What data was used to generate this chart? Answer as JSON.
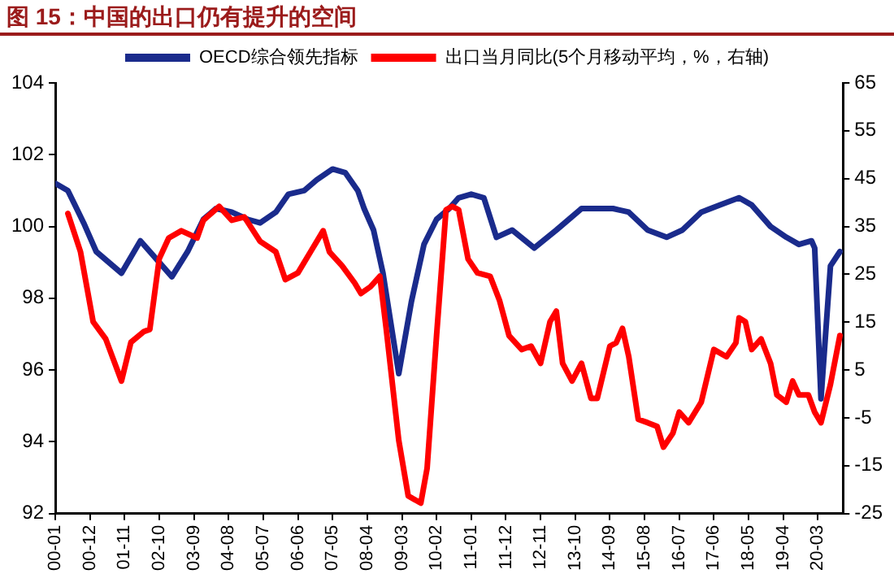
{
  "chart_data": {
    "type": "line",
    "title": "图 15：中国的出口仍有提升的空间",
    "legend": "top",
    "grid": false,
    "marker": "none",
    "line_style": "solid",
    "xlim": [
      "2000-01",
      "2020-11"
    ],
    "xticks": [
      {
        "value": "2000-01",
        "label": "00-01"
      },
      {
        "value": "2000-12",
        "label": "00-12"
      },
      {
        "value": "2001-11",
        "label": "01-11"
      },
      {
        "value": "2002-10",
        "label": "02-10"
      },
      {
        "value": "2003-09",
        "label": "03-09"
      },
      {
        "value": "2004-08",
        "label": "04-08"
      },
      {
        "value": "2005-07",
        "label": "05-07"
      },
      {
        "value": "2006-06",
        "label": "06-06"
      },
      {
        "value": "2007-05",
        "label": "07-05"
      },
      {
        "value": "2008-04",
        "label": "08-04"
      },
      {
        "value": "2009-03",
        "label": "09-03"
      },
      {
        "value": "2010-02",
        "label": "10-02"
      },
      {
        "value": "2011-01",
        "label": "11-01"
      },
      {
        "value": "2011-12",
        "label": "11-12"
      },
      {
        "value": "2012-11",
        "label": "12-11"
      },
      {
        "value": "2013-10",
        "label": "13-10"
      },
      {
        "value": "2014-09",
        "label": "14-09"
      },
      {
        "value": "2015-08",
        "label": "15-08"
      },
      {
        "value": "2016-07",
        "label": "16-07"
      },
      {
        "value": "2017-06",
        "label": "17-06"
      },
      {
        "value": "2018-05",
        "label": "18-05"
      },
      {
        "value": "2019-04",
        "label": "19-04"
      },
      {
        "value": "2020-03",
        "label": "20-03"
      }
    ],
    "ylim": [
      92,
      104
    ],
    "yticks": [
      92,
      94,
      96,
      98,
      100,
      102,
      104
    ],
    "y2lim": [
      -25,
      65
    ],
    "y2ticks": [
      -25,
      -15,
      -5,
      5,
      15,
      25,
      35,
      45,
      55,
      65
    ],
    "series": [
      {
        "name": "OECD综合领先指标",
        "color": "#1a2b8c",
        "x": [
          "2000-01",
          "2000-05",
          "2000-10",
          "2001-02",
          "2001-10",
          "2002-04",
          "2002-08",
          "2003-02",
          "2003-07",
          "2003-12",
          "2004-04",
          "2004-09",
          "2005-02",
          "2005-06",
          "2005-11",
          "2006-03",
          "2006-08",
          "2006-12",
          "2007-05",
          "2007-09",
          "2008-01",
          "2008-03",
          "2008-06",
          "2008-09",
          "2009-02",
          "2009-06",
          "2009-10",
          "2010-02",
          "2010-06",
          "2010-09",
          "2011-01",
          "2011-05",
          "2011-09",
          "2012-02",
          "2012-09",
          "2013-04",
          "2013-12",
          "2014-10",
          "2015-03",
          "2015-09",
          "2016-03",
          "2016-08",
          "2017-02",
          "2017-08",
          "2018-02",
          "2018-06",
          "2018-12",
          "2019-05",
          "2019-09",
          "2020-01",
          "2020-02",
          "2020-04",
          "2020-07",
          "2020-10"
        ],
        "values": [
          101.2,
          101.0,
          100.1,
          99.3,
          98.7,
          99.6,
          99.2,
          98.6,
          99.3,
          100.2,
          100.5,
          100.4,
          100.2,
          100.1,
          100.4,
          100.9,
          101.0,
          101.3,
          101.6,
          101.5,
          101.0,
          100.5,
          99.9,
          98.7,
          95.9,
          97.9,
          99.5,
          100.2,
          100.5,
          100.8,
          100.9,
          100.8,
          99.7,
          99.9,
          99.4,
          99.9,
          100.5,
          100.5,
          100.4,
          99.9,
          99.7,
          99.9,
          100.4,
          100.6,
          100.8,
          100.6,
          100.0,
          99.7,
          99.5,
          99.6,
          99.4,
          95.2,
          98.9,
          99.3
        ]
      },
      {
        "name": "出口当月同比(5个月移动平均，%，右轴)",
        "color": "#ff0000",
        "axis": "y2",
        "x": [
          "2000-05",
          "2000-09",
          "2001-01",
          "2001-05",
          "2001-10",
          "2002-01",
          "2002-05",
          "2002-07",
          "2002-10",
          "2003-01",
          "2003-05",
          "2003-10",
          "2003-12",
          "2004-05",
          "2004-09",
          "2005-01",
          "2005-06",
          "2005-11",
          "2006-02",
          "2006-06",
          "2006-10",
          "2007-02",
          "2007-04",
          "2007-08",
          "2007-12",
          "2008-02",
          "2008-05",
          "2008-08",
          "2008-10",
          "2009-02",
          "2009-05",
          "2009-09",
          "2009-11",
          "2010-02",
          "2010-05",
          "2010-07",
          "2010-09",
          "2010-12",
          "2011-03",
          "2011-07",
          "2011-10",
          "2012-01",
          "2012-05",
          "2012-08",
          "2012-11",
          "2013-02",
          "2013-04",
          "2013-06",
          "2013-09",
          "2013-12",
          "2014-03",
          "2014-05",
          "2014-09",
          "2014-11",
          "2015-01",
          "2015-03",
          "2015-06",
          "2015-09",
          "2015-12",
          "2016-02",
          "2016-05",
          "2016-07",
          "2016-10",
          "2017-02",
          "2017-06",
          "2017-10",
          "2018-01",
          "2018-02",
          "2018-04",
          "2018-06",
          "2018-09",
          "2018-12",
          "2019-02",
          "2019-05",
          "2019-07",
          "2019-09",
          "2019-12",
          "2020-02",
          "2020-04",
          "2020-07",
          "2020-10"
        ],
        "values": [
          37.7,
          29.7,
          15.1,
          11.5,
          2.7,
          10.8,
          13.0,
          13.5,
          28.3,
          32.6,
          34.1,
          32.6,
          36.3,
          39.2,
          36.3,
          37.0,
          31.9,
          29.7,
          23.9,
          25.3,
          29.7,
          34.1,
          29.7,
          26.8,
          23.2,
          21.0,
          22.4,
          24.6,
          13.7,
          -9.7,
          -21.3,
          -22.8,
          -15.5,
          12.2,
          38.5,
          39.2,
          38.5,
          28.2,
          25.3,
          24.6,
          19.5,
          12.2,
          9.3,
          10.0,
          6.4,
          15.1,
          17.3,
          6.4,
          2.7,
          6.4,
          -0.9,
          -0.9,
          10.0,
          10.7,
          13.7,
          7.8,
          -5.3,
          -6.0,
          -6.8,
          -11.1,
          -8.2,
          -3.8,
          -6.0,
          -1.7,
          9.3,
          7.8,
          10.7,
          15.9,
          15.1,
          9.3,
          11.5,
          6.4,
          -0.2,
          -1.7,
          2.7,
          -0.2,
          -0.2,
          -3.8,
          -6.0,
          2.0,
          12.2
        ]
      }
    ]
  }
}
